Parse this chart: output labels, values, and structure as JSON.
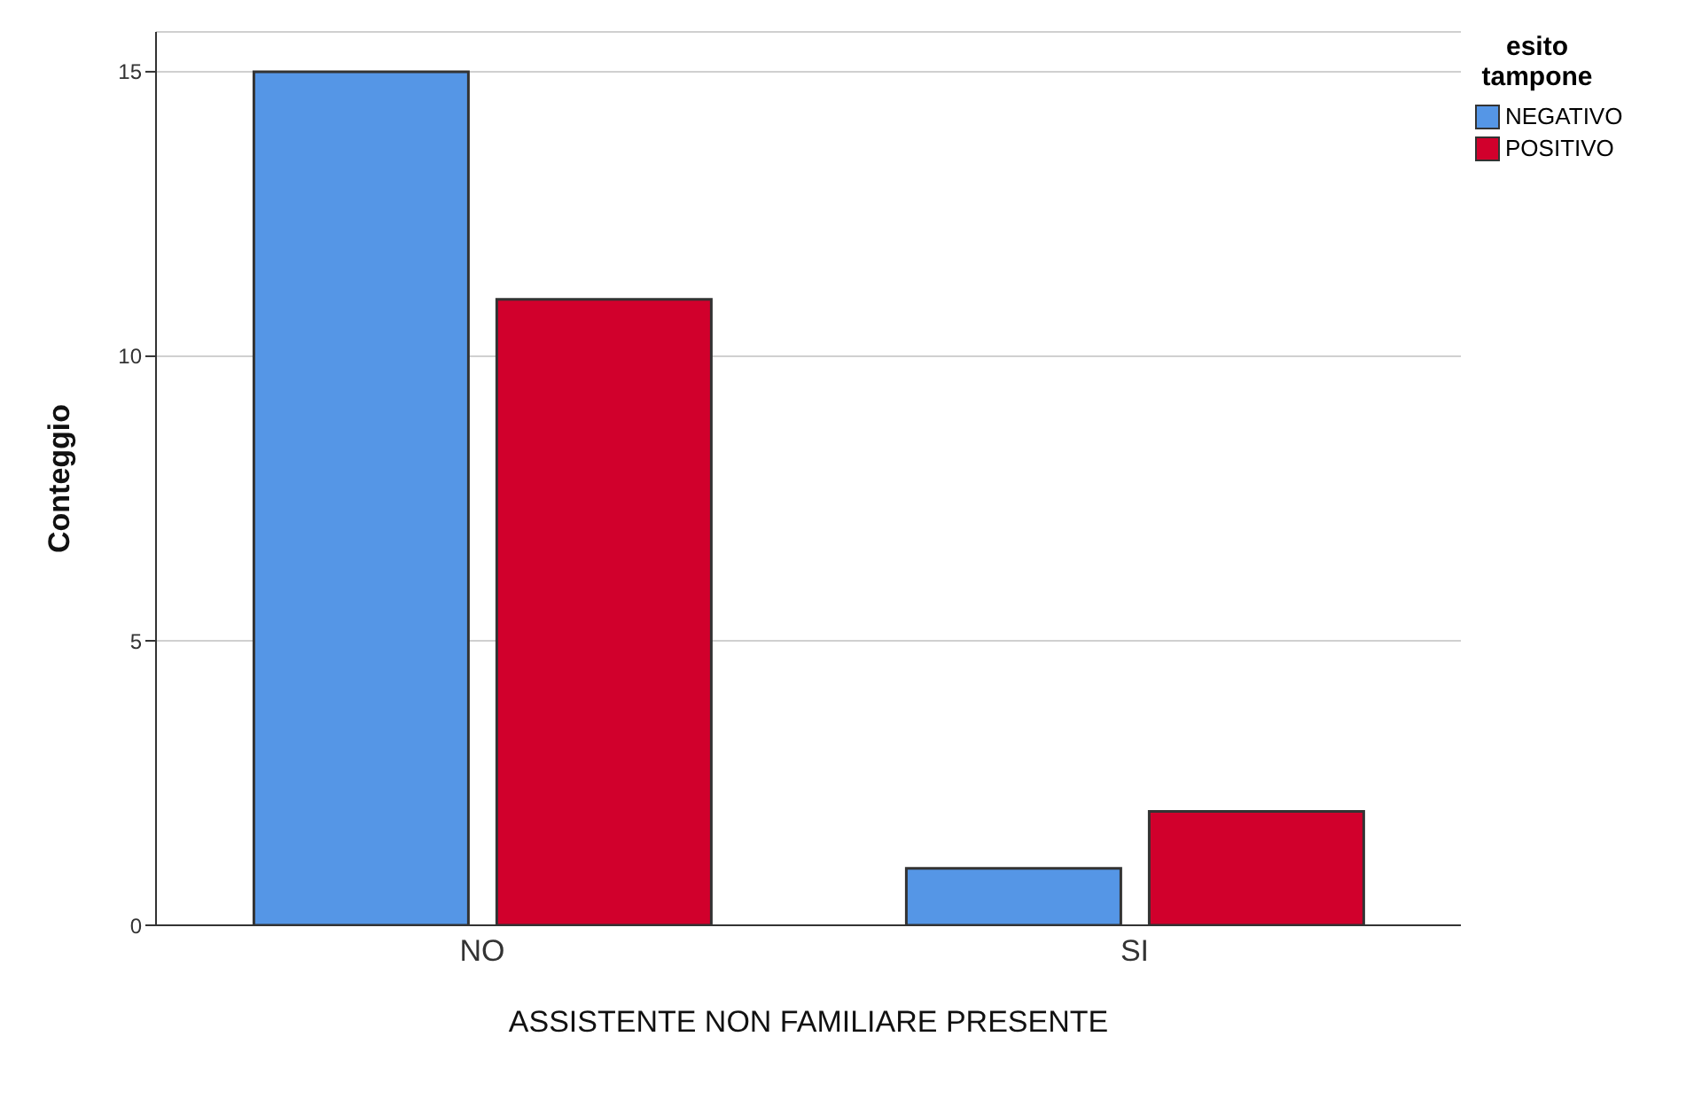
{
  "chart_data": {
    "type": "bar",
    "xlabel": "ASSISTENTE NON FAMILIARE PRESENTE",
    "ylabel": "Conteggio",
    "legend_title": "esito tampone",
    "categories": [
      "NO",
      "SI"
    ],
    "series": [
      {
        "name": "NEGATIVO",
        "color": "#5596e6",
        "values": [
          15,
          1
        ]
      },
      {
        "name": "POSITIVO",
        "color": "#d1002c",
        "values": [
          11,
          2
        ]
      }
    ],
    "ylim": [
      0,
      15.7
    ],
    "yticks": [
      0,
      5,
      10,
      15
    ],
    "grid": "y",
    "legend": "top right"
  }
}
